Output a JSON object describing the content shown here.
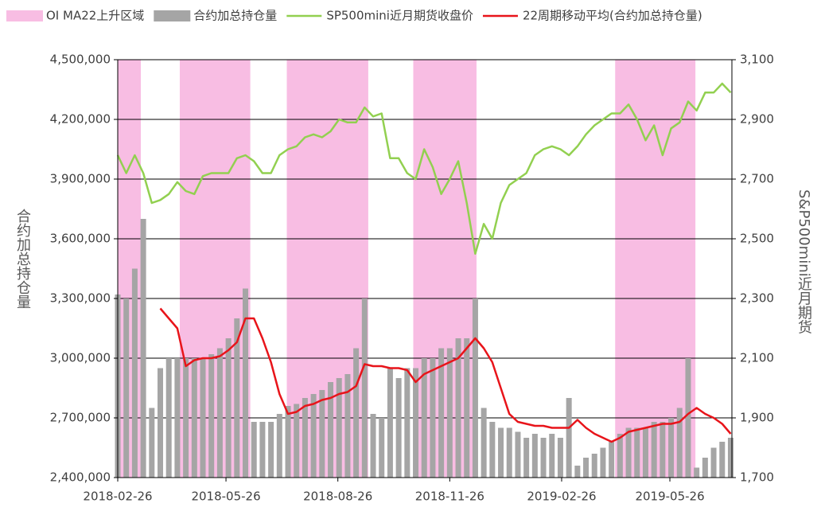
{
  "chart_data": {
    "type": "combo",
    "y_label": "合约加总持仓量",
    "y2_label": "S&P500mini近月期货",
    "xlim": [
      "2018-02-26",
      "2019-07-16"
    ],
    "xticks": [
      "2018-02-26",
      "2018-05-26",
      "2018-08-26",
      "2018-11-26",
      "2019-02-26",
      "2019-05-26"
    ],
    "ylim": [
      2400000,
      4500000
    ],
    "yticks": [
      {
        "value": 2400000,
        "label": "2,400,000"
      },
      {
        "value": 2700000,
        "label": "2,700,000"
      },
      {
        "value": 3000000,
        "label": "3,000,000"
      },
      {
        "value": 3300000,
        "label": "3,300,000"
      },
      {
        "value": 3600000,
        "label": "3,600,000"
      },
      {
        "value": 3900000,
        "label": "3,900,000"
      },
      {
        "value": 4200000,
        "label": "4,200,000"
      },
      {
        "value": 4500000,
        "label": "4,500,000"
      }
    ],
    "y2lim": [
      1700,
      3100
    ],
    "y2ticks": [
      {
        "value": 1700,
        "label": "1,700"
      },
      {
        "value": 1900,
        "label": "1,900"
      },
      {
        "value": 2100,
        "label": "2,100"
      },
      {
        "value": 2300,
        "label": "2,300"
      },
      {
        "value": 2500,
        "label": "2,500"
      },
      {
        "value": 2700,
        "label": "2,700"
      },
      {
        "value": 2900,
        "label": "2,900"
      },
      {
        "value": 3100,
        "label": "3,100"
      }
    ],
    "grid": true,
    "legend": "top",
    "regions": {
      "name": "OI MA22上升区域",
      "color": "#f8bde3",
      "spans": [
        [
          "2018-02-26",
          "2018-03-17"
        ],
        [
          "2018-04-18",
          "2018-06-15"
        ],
        [
          "2018-07-15",
          "2018-09-20"
        ],
        [
          "2018-10-27",
          "2018-12-18"
        ],
        [
          "2019-04-11",
          "2019-06-16"
        ]
      ]
    },
    "x": [
      "2018-02-26",
      "2018-03-05",
      "2018-03-12",
      "2018-03-19",
      "2018-03-26",
      "2018-04-02",
      "2018-04-09",
      "2018-04-16",
      "2018-04-23",
      "2018-04-30",
      "2018-05-07",
      "2018-05-14",
      "2018-05-21",
      "2018-05-28",
      "2018-06-04",
      "2018-06-11",
      "2018-06-18",
      "2018-06-25",
      "2018-07-02",
      "2018-07-09",
      "2018-07-16",
      "2018-07-23",
      "2018-07-30",
      "2018-08-06",
      "2018-08-13",
      "2018-08-20",
      "2018-08-27",
      "2018-09-03",
      "2018-09-10",
      "2018-09-17",
      "2018-09-24",
      "2018-10-01",
      "2018-10-08",
      "2018-10-15",
      "2018-10-22",
      "2018-10-29",
      "2018-11-05",
      "2018-11-12",
      "2018-11-19",
      "2018-11-26",
      "2018-12-03",
      "2018-12-10",
      "2018-12-17",
      "2018-12-24",
      "2018-12-31",
      "2019-01-07",
      "2019-01-14",
      "2019-01-21",
      "2019-01-28",
      "2019-02-04",
      "2019-02-11",
      "2019-02-18",
      "2019-02-25",
      "2019-03-04",
      "2019-03-11",
      "2019-03-18",
      "2019-03-25",
      "2019-04-01",
      "2019-04-08",
      "2019-04-15",
      "2019-04-22",
      "2019-04-29",
      "2019-05-06",
      "2019-05-13",
      "2019-05-20",
      "2019-05-27",
      "2019-06-03",
      "2019-06-10",
      "2019-06-17",
      "2019-06-24",
      "2019-07-01",
      "2019-07-08",
      "2019-07-15"
    ],
    "series": [
      {
        "name": "合约加总持仓量",
        "type": "bar",
        "axis": "y",
        "color": "#a5a5a5",
        "values": [
          3320000,
          3300000,
          3450000,
          3700000,
          2750000,
          2950000,
          3000000,
          3000000,
          3000000,
          3000000,
          3000000,
          3020000,
          3050000,
          3100000,
          3200000,
          3350000,
          2680000,
          2680000,
          2680000,
          2720000,
          2760000,
          2770000,
          2800000,
          2820000,
          2840000,
          2880000,
          2900000,
          2920000,
          3050000,
          3300000,
          2720000,
          2700000,
          2950000,
          2900000,
          2950000,
          2950000,
          3000000,
          3000000,
          3050000,
          3050000,
          3100000,
          3100000,
          3300000,
          2750000,
          2680000,
          2650000,
          2650000,
          2630000,
          2600000,
          2620000,
          2600000,
          2620000,
          2600000,
          2800000,
          2460000,
          2500000,
          2520000,
          2550000,
          2580000,
          2620000,
          2650000,
          2650000,
          2650000,
          2680000,
          2680000,
          2700000,
          2750000,
          3000000,
          2450000,
          2500000,
          2550000,
          2580000,
          2600000
        ]
      },
      {
        "name": "SP500mini近月期货收盘价",
        "type": "line",
        "axis": "y2",
        "color": "#92d050",
        "values": [
          2780,
          2720,
          2780,
          2720,
          2620,
          2630,
          2650,
          2690,
          2660,
          2650,
          2710,
          2720,
          2720,
          2720,
          2770,
          2780,
          2760,
          2720,
          2720,
          2780,
          2800,
          2810,
          2840,
          2850,
          2840,
          2860,
          2900,
          2890,
          2890,
          2940,
          2910,
          2920,
          2770,
          2770,
          2720,
          2700,
          2800,
          2740,
          2650,
          2700,
          2760,
          2620,
          2450,
          2550,
          2500,
          2620,
          2680,
          2700,
          2720,
          2780,
          2800,
          2810,
          2800,
          2780,
          2810,
          2850,
          2880,
          2900,
          2920,
          2920,
          2950,
          2900,
          2830,
          2880,
          2780,
          2870,
          2890,
          2960,
          2930,
          2990,
          2990,
          3020,
          2990
        ]
      },
      {
        "name": "22周期移动平均(合约加总持仓量)",
        "type": "line",
        "axis": "y",
        "color": "#e8141a",
        "values": [
          null,
          null,
          null,
          null,
          null,
          3250000,
          3200000,
          3150000,
          2960000,
          2990000,
          3000000,
          3000000,
          3010000,
          3040000,
          3080000,
          3200000,
          3200000,
          3100000,
          2980000,
          2820000,
          2720000,
          2730000,
          2760000,
          2770000,
          2790000,
          2800000,
          2820000,
          2830000,
          2860000,
          2970000,
          2960000,
          2960000,
          2950000,
          2950000,
          2940000,
          2880000,
          2920000,
          2940000,
          2960000,
          2980000,
          3000000,
          3050000,
          3100000,
          3050000,
          2980000,
          2850000,
          2720000,
          2680000,
          2670000,
          2660000,
          2660000,
          2650000,
          2650000,
          2650000,
          2690000,
          2650000,
          2620000,
          2600000,
          2580000,
          2600000,
          2630000,
          2640000,
          2650000,
          2660000,
          2670000,
          2670000,
          2680000,
          2720000,
          2750000,
          2720000,
          2700000,
          2670000,
          2620000
        ]
      }
    ]
  }
}
